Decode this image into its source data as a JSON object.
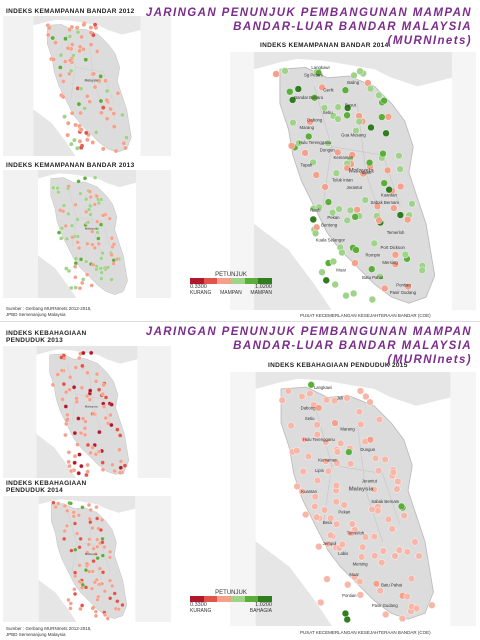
{
  "section1": {
    "title_lines": [
      "JARINGAN PENUNJUK PEMBANGUNAN MAMPAN",
      "BANDAR-LUAR BANDAR MALAYSIA",
      "(MURNInets)"
    ],
    "panel_small_top": "INDEKS KEMAMPANAN BANDAR 2012",
    "panel_small_bottom": "INDEKS KEMAMPANAN BANDAR 2013",
    "panel_large": "INDEKS KEMAMPANAN BANDAR 2014",
    "country_label": "Malaysia",
    "legend": {
      "title": "PETUNJUK",
      "min": "0.3300",
      "max": "1.0200",
      "low": "KURANG",
      "mid": "MAMPAN",
      "high": "MAMPAN"
    },
    "source": [
      "Sumber : Gerbang MURNInets 2012-2015,",
      "JPBD Semenanjung Malaysia"
    ],
    "credit": "PUSAT KECEMERLANGAN KESEJAHTERAAN BANDAR (COE)"
  },
  "section2": {
    "title_lines": [
      "JARINGAN PENUNJUK PEMBANGUNAN MAMPAN",
      "BANDAR-LUAR BANDAR MALAYSIA",
      "(MURNInets)"
    ],
    "panel_small_top_lines": [
      "INDEKS KEBAHAGIAAN",
      "PENDUDUK 2013"
    ],
    "panel_small_bottom_lines": [
      "INDEKS KEBAHAGIAAN",
      "PENDUDUK 2014"
    ],
    "panel_large": "INDEKS KEBAHAGIAAN PENDUDUK 2015",
    "country_label": "Malaysia",
    "legend": {
      "title": "PETUNJUK",
      "min": "0.3300",
      "max": "1.0200",
      "low": "KURANG",
      "mid": "",
      "high": "BAHAGIA"
    },
    "source": [
      "Sumber : Gerbang MURNInets 2012-2015,",
      "JPBD Semenanjung Malaysia"
    ],
    "credit": "PUSAT KECEMERLANGAN KESEJAHTERAAN BANDAR (COE)"
  },
  "town_labels_top": [
    "Langkawi",
    "Sg Petani",
    "Baling",
    "Gerik",
    "Bandar Baharu",
    "Besut",
    "Setiu",
    "Dabong",
    "Marang",
    "Gua Musang",
    "Hulu Terengganu",
    "Dungun",
    "Kemaman",
    "Tapah",
    "Lipis",
    "Teluk Intan",
    "Jerantut",
    "Kuantan",
    "Sabak Bernam",
    "Raub",
    "Pekan",
    "Bentong",
    "Temerloh",
    "Kuala Selangor",
    "Port Dickson",
    "Rompin",
    "Mersing",
    "Muar",
    "Batu Pahat",
    "Pontian",
    "Pasir Gudang"
  ],
  "town_labels_bottom": [
    "Langkawi",
    "Jeli",
    "Dabong",
    "Setiu",
    "Marang",
    "Hulu Terengganu",
    "Dungun",
    "Kemaman",
    "Lipis",
    "Jerantut",
    "Kuantan",
    "Sabak Bernam",
    "Pekan",
    "Bera",
    "Temerloh",
    "Jempol",
    "Labis",
    "Mersing",
    "Muar",
    "Batu Pahat",
    "Pontian",
    "Pasir Gudang"
  ],
  "colors": {
    "purple": "#7b2d8b",
    "red_dark": "#b2182b",
    "red": "#e0544a",
    "red_light": "#f4a08a",
    "pink": "#f7b6a8",
    "green_light": "#9fd38a",
    "green": "#5cae3a",
    "green_dark": "#2f7d1e"
  }
}
